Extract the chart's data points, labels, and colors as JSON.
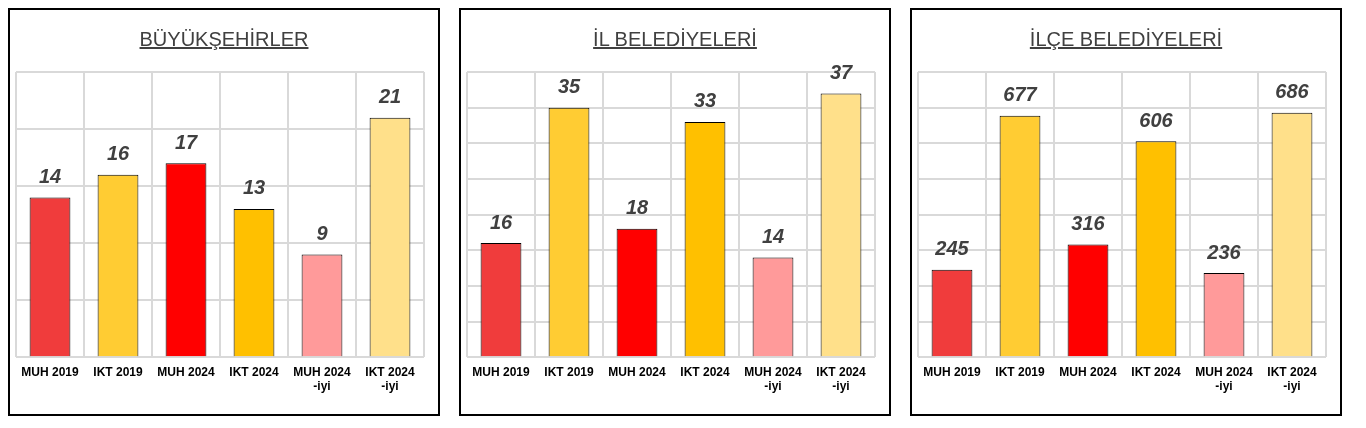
{
  "chart_data": [
    {
      "type": "bar",
      "title": "BÜYÜKŞEHİRLER",
      "categories": [
        "MUH 2019",
        "IKT 2019",
        "MUH 2024",
        "IKT 2024",
        "MUH 2024 -iyi",
        "IKT 2024 -iyi"
      ],
      "values": [
        14,
        16,
        17,
        13,
        9,
        21
      ],
      "colors": [
        "#f03c3c",
        "#ffcc33",
        "#ff0000",
        "#ffc000",
        "#ff9a9a",
        "#ffe08a"
      ],
      "tick_labels": "x",
      "grid": true,
      "data_labels": true
    },
    {
      "type": "bar",
      "title": "İL BELEDİYELERİ",
      "categories": [
        "MUH 2019",
        "IKT 2019",
        "MUH 2024",
        "IKT 2024",
        "MUH 2024 -iyi",
        "IKT 2024 -iyi"
      ],
      "values": [
        16,
        35,
        18,
        33,
        14,
        37
      ],
      "colors": [
        "#f03c3c",
        "#ffcc33",
        "#ff0000",
        "#ffc000",
        "#ff9a9a",
        "#ffe08a"
      ],
      "tick_labels": "x",
      "grid": true,
      "data_labels": true
    },
    {
      "type": "bar",
      "title": "İLÇE BELEDİYELERİ",
      "categories": [
        "MUH 2019",
        "IKT 2019",
        "MUH 2024",
        "IKT 2024",
        "MUH 2024 -iyi",
        "IKT 2024 -iyi"
      ],
      "values": [
        245,
        677,
        316,
        606,
        236,
        686
      ],
      "colors": [
        "#f03c3c",
        "#ffcc33",
        "#ff0000",
        "#ffc000",
        "#ff9a9a",
        "#ffe08a"
      ],
      "tick_labels": "x",
      "grid": true,
      "data_labels": true
    }
  ]
}
